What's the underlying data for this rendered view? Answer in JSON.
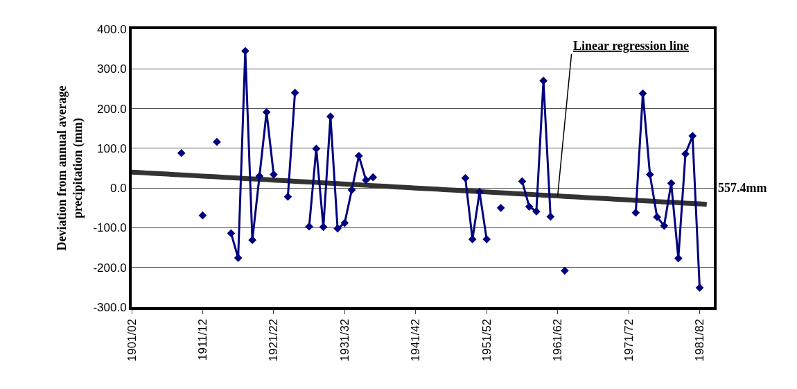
{
  "chart_data": {
    "type": "line",
    "ylabel": "Deviation from annual average precipitation (mm)",
    "categories": [
      "1901/02",
      null,
      null,
      null,
      null,
      null,
      null,
      null,
      null,
      null,
      "1911/12",
      null,
      null,
      null,
      null,
      null,
      null,
      null,
      null,
      null,
      "1921/22",
      null,
      null,
      null,
      null,
      null,
      null,
      null,
      null,
      null,
      "1931/32",
      null,
      null,
      null,
      null,
      null,
      null,
      null,
      null,
      null,
      "1941/42",
      null,
      null,
      null,
      null,
      null,
      null,
      null,
      null,
      null,
      "1951/52",
      null,
      null,
      null,
      null,
      null,
      null,
      null,
      null,
      null,
      "1961/62",
      null,
      null,
      null,
      null,
      null,
      null,
      null,
      null,
      null,
      "1971/72",
      null,
      null,
      null,
      null,
      null,
      null,
      null,
      null,
      null,
      "1981/82",
      null
    ],
    "series": [
      {
        "color": "#000080",
        "marker": "diamond",
        "values": [
          null,
          null,
          null,
          null,
          null,
          null,
          null,
          88,
          null,
          null,
          -69,
          null,
          116,
          null,
          -114,
          -176,
          345,
          -131,
          30,
          191,
          34,
          null,
          -22,
          240,
          null,
          -97,
          99,
          -98,
          180,
          -102,
          -88,
          -5,
          81,
          20,
          27,
          null,
          null,
          null,
          null,
          null,
          null,
          null,
          null,
          null,
          null,
          null,
          null,
          25,
          -129,
          -10,
          -129,
          null,
          -50,
          null,
          null,
          17,
          -47,
          -59,
          270,
          -72,
          null,
          -208,
          null,
          null,
          null,
          null,
          null,
          null,
          null,
          null,
          null,
          -62,
          238,
          34,
          -73,
          -95,
          12,
          -177,
          86,
          131,
          -251,
          null
        ]
      },
      {
        "type": "line",
        "color": "#333333",
        "marker": "none",
        "values": [
          40,
          39,
          38,
          37,
          36,
          35,
          34,
          33,
          32,
          31,
          30,
          29,
          28,
          27,
          26,
          25,
          24,
          23,
          22,
          21,
          20,
          19,
          18,
          17,
          16,
          15,
          14,
          13,
          12,
          11,
          10,
          9,
          8,
          7,
          6,
          5,
          4,
          3,
          2,
          1,
          0,
          -1,
          -2,
          -3,
          -4,
          -5,
          -6,
          -7,
          -8,
          -9,
          -10,
          -11,
          -12,
          -13,
          -14,
          -15,
          -16,
          -17,
          -18,
          -19,
          -20,
          -21,
          -22,
          -23,
          -24,
          -25,
          -26,
          -27,
          -28,
          -29,
          -30,
          -31,
          -32,
          -33,
          -34,
          -35,
          -36,
          -37,
          -38,
          -39,
          -40,
          -41
        ]
      }
    ],
    "ylim": [
      -300,
      400
    ],
    "yticks": [
      {
        "value": -300,
        "label": "-300.0"
      },
      {
        "value": -200,
        "label": "-200.0"
      },
      {
        "value": -100,
        "label": "-100.0"
      },
      {
        "value": 0,
        "label": "0.0"
      },
      {
        "value": 100,
        "label": "100.0"
      },
      {
        "value": 200,
        "label": "200.0"
      },
      {
        "value": 300,
        "label": "300.0"
      },
      {
        "value": 400,
        "label": "400.0"
      }
    ],
    "grid": "y",
    "annotations": [
      {
        "text": "Linear regression line",
        "x": "1961/62",
        "y": -20
      },
      "557.4mm"
    ]
  }
}
